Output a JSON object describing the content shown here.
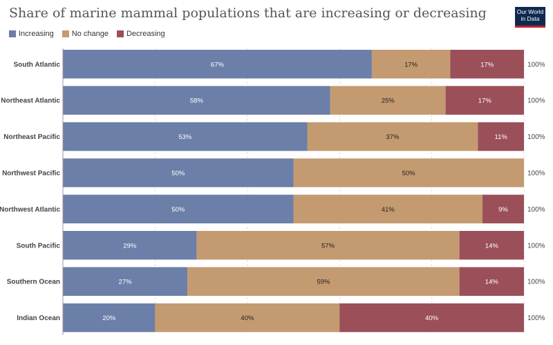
{
  "header": {
    "title": "Share of marine mammal populations that are increasing or decreasing",
    "logo_line1": "Our World",
    "logo_line2": "in Data"
  },
  "colors": {
    "increasing": "#6b7fa8",
    "no_change": "#c49a71",
    "decreasing": "#9b4f59"
  },
  "chart_data": {
    "type": "bar",
    "orientation": "horizontal",
    "stacked": true,
    "legend": [
      "Increasing",
      "No change",
      "Decreasing"
    ],
    "legend_position": "top-left",
    "grid": true,
    "xlim": [
      0,
      100
    ],
    "categories": [
      "South Atlantic",
      "Northeast Atlantic",
      "Northeast Pacific",
      "Northwest Pacific",
      "Northwest Atlantic",
      "South Pacific",
      "Southern Ocean",
      "Indian Ocean"
    ],
    "series": [
      {
        "name": "Increasing",
        "values": [
          67,
          58,
          53,
          50,
          50,
          29,
          27,
          20
        ]
      },
      {
        "name": "No change",
        "values": [
          17,
          25,
          37,
          50,
          41,
          57,
          59,
          40
        ]
      },
      {
        "name": "Decreasing",
        "values": [
          17,
          17,
          11,
          0,
          9,
          14,
          14,
          40
        ]
      }
    ],
    "totals": [
      "100%",
      "100%",
      "100%",
      "100%",
      "100%",
      "100%",
      "100%",
      "100%"
    ]
  }
}
